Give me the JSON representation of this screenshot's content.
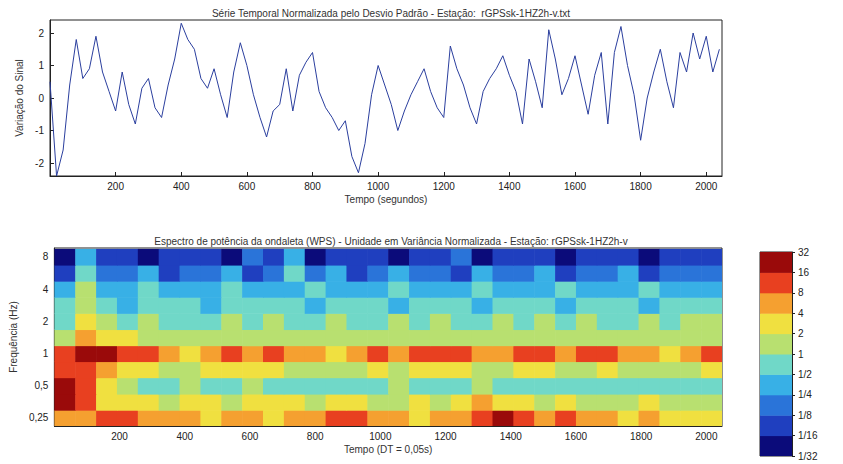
{
  "chart_data": [
    {
      "type": "line",
      "title": "Série Temporal Normalizada pelo Desvio Padrão - Estação:  rGPSsk-1HZ2h-v.txt",
      "x_label": "Tempo (segundos)",
      "y_label": "Variação do Sinal",
      "x": [
        0,
        20,
        40,
        60,
        80,
        100,
        120,
        140,
        160,
        180,
        200,
        220,
        240,
        260,
        280,
        300,
        320,
        340,
        360,
        380,
        400,
        420,
        440,
        460,
        480,
        500,
        520,
        540,
        560,
        580,
        600,
        620,
        640,
        660,
        680,
        700,
        720,
        740,
        760,
        780,
        800,
        820,
        840,
        860,
        880,
        900,
        920,
        940,
        960,
        980,
        1000,
        1020,
        1040,
        1060,
        1080,
        1100,
        1120,
        1140,
        1160,
        1180,
        1200,
        1220,
        1240,
        1260,
        1280,
        1300,
        1320,
        1340,
        1360,
        1380,
        1400,
        1420,
        1440,
        1460,
        1480,
        1500,
        1520,
        1540,
        1560,
        1580,
        1600,
        1620,
        1640,
        1660,
        1680,
        1700,
        1720,
        1740,
        1760,
        1780,
        1800,
        1820,
        1840,
        1860,
        1880,
        1900,
        1920,
        1940,
        1960,
        1980,
        2000,
        2020,
        2040
      ],
      "values": [
        0.5,
        -2.4,
        -1.6,
        0.4,
        1.8,
        0.6,
        0.9,
        1.9,
        0.8,
        0.2,
        -0.4,
        0.8,
        -0.2,
        -0.8,
        0.3,
        0.6,
        -0.3,
        -0.6,
        0.4,
        1.2,
        2.3,
        1.8,
        1.5,
        0.6,
        0.3,
        0.9,
        0.1,
        -0.6,
        0.8,
        1.7,
        1.0,
        0.1,
        -0.6,
        -1.2,
        -0.4,
        -0.2,
        0.9,
        -0.4,
        0.7,
        1.1,
        1.4,
        0.2,
        -0.3,
        -0.6,
        -1.0,
        -0.7,
        -1.8,
        -2.3,
        -1.4,
        0.1,
        1.0,
        0.4,
        -0.2,
        -1.0,
        -0.4,
        0.1,
        0.5,
        0.9,
        0.2,
        -0.3,
        -0.6,
        1.6,
        0.9,
        0.4,
        -0.3,
        -0.8,
        0.2,
        0.6,
        0.9,
        1.3,
        0.7,
        0.2,
        -0.8,
        1.2,
        0.5,
        -0.3,
        2.1,
        1.2,
        0.1,
        0.6,
        1.3,
        0.4,
        -0.5,
        0.7,
        1.4,
        -0.8,
        1.4,
        2.2,
        1.0,
        0.1,
        -1.3,
        0.0,
        0.8,
        1.5,
        0.5,
        -0.3,
        1.4,
        0.8,
        2.0,
        1.2,
        1.9,
        0.8,
        1.5
      ],
      "color": "#2b3f9e",
      "xlim": [
        0,
        2048
      ],
      "xticks": [
        200,
        400,
        600,
        800,
        1000,
        1200,
        1400,
        1600,
        1800,
        2000
      ],
      "ylim": [
        -2.4,
        2.4
      ],
      "yticks": [
        -2,
        -1,
        0,
        1,
        2
      ],
      "grid": false
    },
    {
      "type": "heatmap",
      "title": "Espectro de potência da ondaleta (WPS) - Unidade em Variância Normalizada - Estação: rGPSsk-1HZ2h-v",
      "x_label": "Tempo (DT = 0,05s)",
      "y_label": "Frequência (Hz)",
      "x": [
        32,
        96,
        160,
        224,
        288,
        352,
        416,
        480,
        544,
        608,
        672,
        736,
        800,
        864,
        928,
        992,
        1056,
        1120,
        1184,
        1248,
        1312,
        1376,
        1440,
        1504,
        1568,
        1632,
        1696,
        1760,
        1824,
        1888,
        1952,
        2016
      ],
      "y": [
        0.25,
        0.35,
        0.5,
        0.71,
        1,
        1.41,
        2,
        2.83,
        4,
        5.66,
        8
      ],
      "cells": [
        [
          4,
          6,
          10,
          8,
          6,
          4,
          6,
          3,
          5,
          4,
          3,
          4,
          6,
          8,
          8,
          5,
          4,
          3,
          4,
          6,
          14,
          16,
          10,
          6,
          8,
          5,
          4,
          3,
          4,
          3,
          2,
          3
        ],
        [
          16,
          8,
          3,
          2,
          2.5,
          1.5,
          3,
          2,
          1.2,
          2,
          3,
          2.5,
          1.5,
          3,
          2,
          1.5,
          1.2,
          2,
          1.5,
          3,
          4,
          3,
          2,
          1.5,
          2,
          1.5,
          1.2,
          1.5,
          2,
          1.5,
          1.2,
          1.5
        ],
        [
          20,
          12,
          3,
          1,
          0.6,
          0.8,
          1.0,
          0.6,
          0.7,
          1,
          0.8,
          0.5,
          0.7,
          0.9,
          0.6,
          0.8,
          1,
          0.7,
          0.6,
          0.8,
          1,
          0.7,
          0.6,
          0.9,
          0.7,
          0.6,
          0.8,
          0.7,
          0.6,
          0.8,
          0.6,
          0.7
        ],
        [
          10,
          14,
          6,
          3,
          2,
          1.5,
          1.5,
          2,
          2.5,
          2,
          2.5,
          1.5,
          1.2,
          1.5,
          1.2,
          2,
          1.8,
          2.5,
          2.5,
          2,
          1.5,
          1.2,
          2,
          2,
          1.5,
          1.8,
          2,
          1.5,
          1.2,
          1.5,
          1.2,
          2
        ],
        [
          8,
          20,
          18,
          14,
          10,
          4,
          3,
          6,
          10,
          6,
          12,
          5,
          4,
          3,
          4,
          10,
          7,
          12,
          12,
          10,
          6,
          4,
          10,
          9,
          5,
          8,
          9,
          4,
          4,
          3,
          5,
          10
        ],
        [
          1.5,
          5,
          2.5,
          2,
          1.2,
          1.0,
          1.3,
          1.5,
          1.2,
          1.6,
          1.3,
          1.1,
          1.0,
          1.2,
          1.0,
          1.4,
          1.3,
          1.5,
          1.4,
          1.6,
          1.2,
          1.4,
          1.5,
          1.3,
          1.2,
          1.4,
          1.5,
          1.3,
          1.2,
          1.4,
          1.3,
          1.5
        ],
        [
          0.8,
          2.5,
          1.0,
          0.9,
          1.2,
          0.8,
          0.9,
          0.7,
          1.0,
          0.8,
          1.1,
          0.9,
          0.8,
          1.0,
          0.7,
          0.9,
          1.0,
          0.8,
          1.1,
          0.9,
          0.8,
          1.0,
          0.9,
          1.1,
          0.8,
          1.0,
          0.9,
          0.8,
          1.0,
          0.9,
          1.2,
          1.0
        ],
        [
          0.5,
          1.8,
          0.6,
          0.4,
          0.7,
          0.5,
          0.6,
          0.4,
          0.7,
          0.5,
          0.6,
          0.5,
          0.4,
          0.7,
          0.5,
          0.6,
          0.4,
          0.6,
          0.5,
          0.7,
          0.4,
          0.6,
          0.5,
          0.7,
          0.4,
          0.6,
          0.5,
          0.7,
          0.4,
          0.6,
          0.5,
          0.6
        ],
        [
          0.3,
          1.5,
          0.4,
          0.3,
          0.5,
          0.25,
          0.4,
          0.3,
          0.5,
          0.3,
          0.4,
          0.3,
          0.5,
          0.25,
          0.4,
          0.3,
          0.5,
          0.3,
          0.4,
          0.25,
          0.5,
          0.3,
          0.4,
          0.3,
          0.5,
          0.25,
          0.4,
          0.3,
          0.5,
          0.3,
          0.4,
          0.3
        ],
        [
          0.1,
          0.6,
          0.2,
          0.15,
          0.25,
          0.12,
          0.2,
          0.15,
          0.3,
          0.12,
          0.2,
          0.6,
          0.15,
          0.25,
          0.12,
          0.2,
          0.3,
          0.15,
          0.2,
          0.12,
          0.25,
          0.15,
          0.2,
          0.3,
          0.12,
          0.2,
          0.15,
          0.25,
          0.12,
          0.2,
          0.15,
          0.2
        ],
        [
          0.06,
          0.3,
          0.08,
          0.1,
          0.06,
          0.12,
          0.08,
          0.1,
          0.06,
          0.15,
          0.08,
          0.3,
          0.06,
          0.1,
          0.08,
          0.12,
          0.06,
          0.1,
          0.08,
          0.15,
          0.06,
          0.1,
          0.12,
          0.08,
          0.06,
          0.1,
          0.08,
          0.12,
          0.06,
          0.1,
          0.08,
          0.12
        ]
      ],
      "xlim": [
        0,
        2048
      ],
      "xticks": [
        200,
        400,
        600,
        800,
        1000,
        1200,
        1400,
        1600,
        1800,
        2000
      ],
      "ylim": [
        0.21,
        9.7
      ],
      "yticks": [
        {
          "value": 0.25,
          "label": "0,25"
        },
        {
          "value": 0.5,
          "label": "0,5"
        },
        1,
        2,
        4,
        8
      ],
      "log": "y",
      "grid": false,
      "colorbar": {
        "lim": [
          0.03125,
          32
        ],
        "ticks": [
          {
            "value": 0.03125,
            "label": "1/32"
          },
          {
            "value": 0.0625,
            "label": "1/16"
          },
          {
            "value": 0.125,
            "label": "1/8"
          },
          {
            "value": 0.25,
            "label": "1/4"
          },
          {
            "value": 0.5,
            "label": "1/2"
          },
          1,
          2,
          4,
          8,
          16,
          32
        ],
        "colors": [
          "#0b0b7a",
          "#1f3fbf",
          "#2a74d9",
          "#38b0e6",
          "#70d8c8",
          "#b8e070",
          "#f0e040",
          "#f5a030",
          "#e84020",
          "#9a0a0a"
        ]
      }
    }
  ]
}
